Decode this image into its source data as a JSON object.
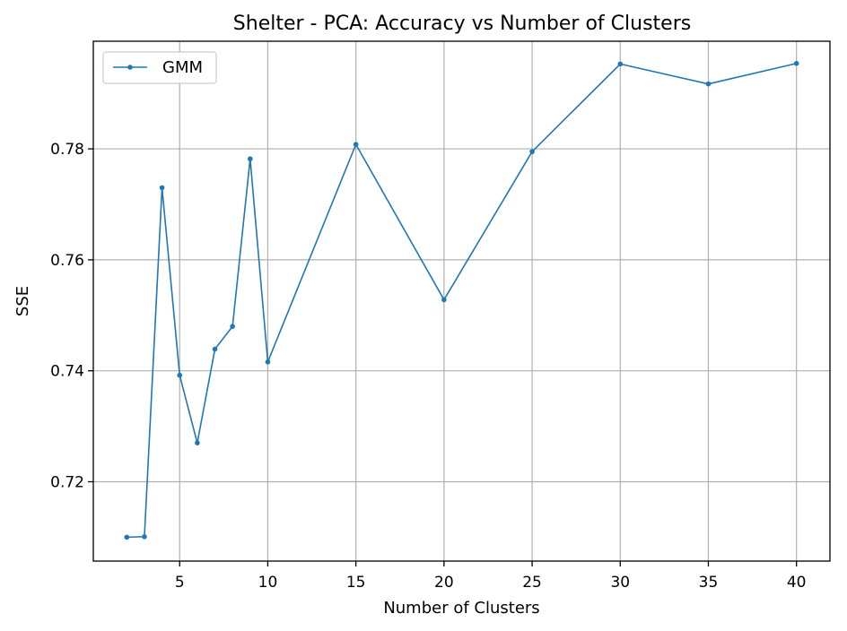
{
  "chart_data": {
    "type": "line",
    "title": "Shelter - PCA: Accuracy vs Number of Clusters",
    "xlabel": "Number of Clusters",
    "ylabel": "SSE",
    "xlim": [
      0.1,
      41.9
    ],
    "ylim": [
      0.7057,
      0.7994
    ],
    "xticks": [
      5,
      10,
      15,
      20,
      25,
      30,
      35,
      40
    ],
    "yticks": [
      0.72,
      0.74,
      0.76,
      0.78
    ],
    "ytick_labels": [
      "0.72",
      "0.74",
      "0.76",
      "0.78"
    ],
    "grid": true,
    "legend_position": "top-left",
    "series": [
      {
        "name": "GMM",
        "color": "#1f77b4",
        "marker": "circle",
        "x": [
          2,
          3,
          4,
          5,
          6,
          7,
          8,
          9,
          10,
          15,
          20,
          25,
          30,
          35,
          40
        ],
        "y": [
          0.71,
          0.7101,
          0.773,
          0.7392,
          0.727,
          0.7439,
          0.748,
          0.7782,
          0.7416,
          0.7808,
          0.7528,
          0.7795,
          0.7953,
          0.7917,
          0.7954
        ]
      }
    ]
  }
}
